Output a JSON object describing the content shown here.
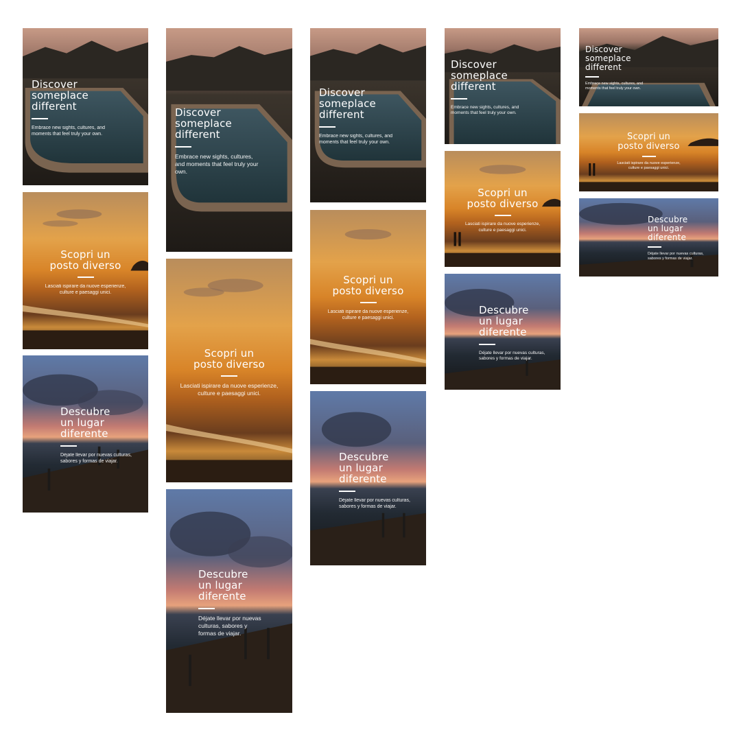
{
  "en": {
    "title": "Discover\nsomeplace\ndifferent",
    "body": "Embrace new sights, cultures, and moments that feel truly your own.",
    "title_wide": "Discover\nsomeplace\ndifferent",
    "body_wide": "Embrace new sights, cultures, and\nmoments that feel truly your own.",
    "body_tall": "Embrace new sights, cultures,\nand moments that feel truly your\nown.",
    "body_med": "Embrace new sights, cultures, and\nmoments that feel truly your own.",
    "body_sq": "Embrace new sights, cultures, and\nmoments that feel truly your own."
  },
  "it": {
    "title": "Scopri un\nposto diverso",
    "body": "Lasciati ispirare da nuove esperienze,\nculture e paesaggi unici."
  },
  "es": {
    "title": "Descubre\nun lugar\ndiferente",
    "body": "Déjate llevar por nuevas culturas,\nsabores y formas de viajar.",
    "body_tall": "Déjate llevar por nuevas\nculturas, sabores y\nformas de viajar."
  }
}
